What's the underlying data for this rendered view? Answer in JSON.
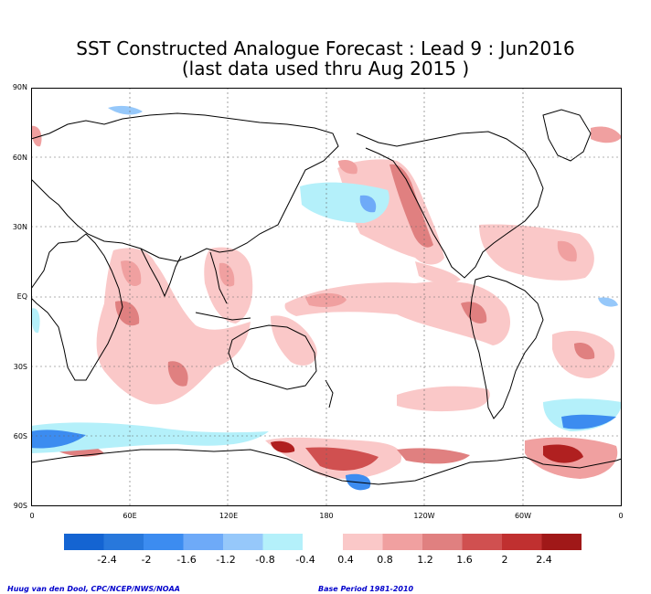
{
  "title": {
    "line1": "SST Constructed Analogue Forecast : Lead 9 : Jun2016",
    "line2": "(last data used thru Aug 2015 )"
  },
  "lat_labels": [
    "90N",
    "60N",
    "30N",
    "EQ",
    "30S",
    "60S",
    "90S"
  ],
  "lon_labels": [
    "0",
    "60E",
    "120E",
    "180",
    "120W",
    "60W",
    "0"
  ],
  "colorbar": {
    "negative_colors": [
      "#1464d2",
      "#2878dc",
      "#3c8cf0",
      "#6eaaf8",
      "#96c8fa",
      "#b4f0fa"
    ],
    "positive_colors": [
      "#fac8c8",
      "#f0a0a0",
      "#e08080",
      "#d05050",
      "#c03030",
      "#a01818"
    ],
    "labels": [
      "-2.4",
      "-2",
      "-1.6",
      "-1.2",
      "-0.8",
      "-0.4",
      "0.4",
      "0.8",
      "1.2",
      "1.6",
      "2",
      "2.4"
    ]
  },
  "credits": {
    "left": "Huug van den Dool, CPC/NCEP/NWS/NOAA",
    "right": "Base Period 1981-2010"
  },
  "colors": {
    "warm1": "#fac8c8",
    "warm2": "#f0a0a0",
    "warm3": "#e08080",
    "warm4": "#d05050",
    "warm5": "#b02020",
    "cool1": "#b4f0fa",
    "cool2": "#96c8fa",
    "cool3": "#3c8cf0",
    "cool4": "#1464d2"
  }
}
